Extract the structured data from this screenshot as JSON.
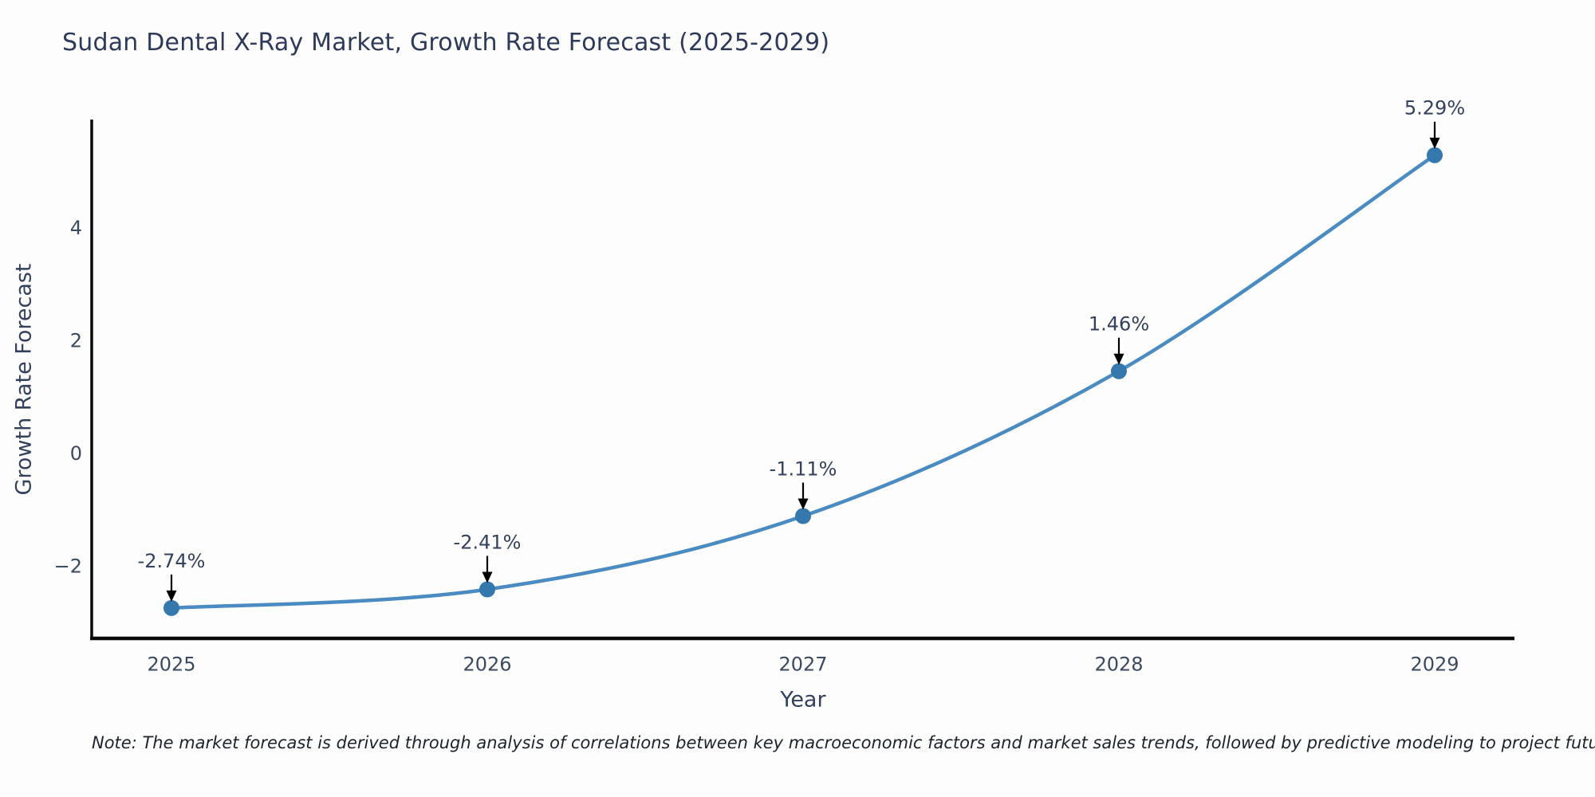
{
  "title": "Sudan Dental X-Ray Market, Growth Rate Forecast (2025-2029)",
  "note": "Note: The market forecast is derived through analysis of correlations between key macroeconomic factors and market sales trends, followed by predictive modeling to project future sales",
  "chart_data": {
    "type": "line",
    "title": "Sudan Dental X-Ray Market, Growth Rate Forecast (2025-2029)",
    "xlabel": "Year",
    "ylabel": "Growth Rate Forecast",
    "x": [
      "2025",
      "2026",
      "2027",
      "2028",
      "2029"
    ],
    "y": [
      -2.74,
      -2.41,
      -1.11,
      1.46,
      5.29
    ],
    "point_labels": [
      "-2.74%",
      "-2.41%",
      "-1.11%",
      "1.46%",
      "5.29%"
    ],
    "yticks": [
      -2,
      0,
      2,
      4
    ],
    "ylim": [
      -3.27,
      5.9
    ],
    "grid": false,
    "legend_position": "none",
    "annotation_style": "value labels above points with downward black arrows",
    "colors": {
      "line": "#4a8bc2",
      "marker": "#3478ae",
      "arrow": "#000000",
      "text": "#33415c",
      "tick_text": "#3b4a5e",
      "spine": "#0a0a0a",
      "background": "#fdfdfe"
    }
  }
}
